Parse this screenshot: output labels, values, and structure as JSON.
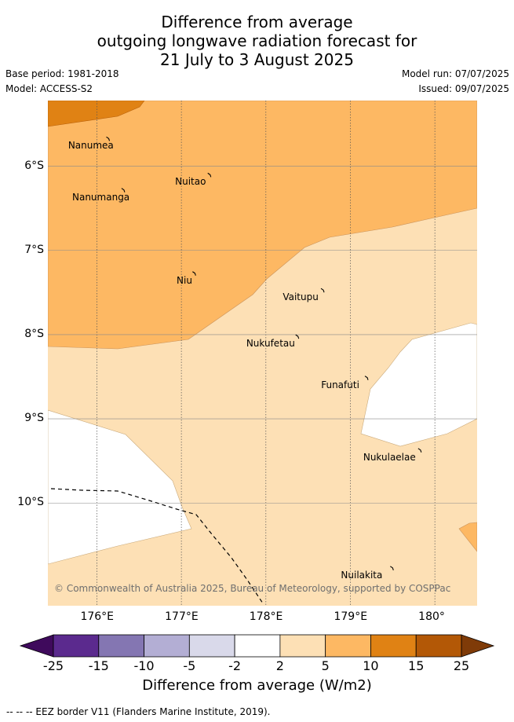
{
  "title": {
    "line1": "Difference from average",
    "line2": "outgoing longwave radiation forecast for",
    "line3": "21 July to 3 August 2025"
  },
  "meta": {
    "base_period": "Base period: 1981-2018",
    "model": "Model: ACCESS-S2",
    "model_run": "Model run: 07/07/2025",
    "issued": "Issued: 09/07/2025"
  },
  "map": {
    "lon_range": [
      175.42,
      180.5
    ],
    "lat_range": [
      -11.22,
      -5.22
    ],
    "lon_ticks": [
      {
        "value": 176,
        "label": "176°E"
      },
      {
        "value": 177,
        "label": "177°E"
      },
      {
        "value": 178,
        "label": "178°E"
      },
      {
        "value": 179,
        "label": "179°E"
      },
      {
        "value": 180,
        "label": "180°"
      }
    ],
    "lat_ticks": [
      {
        "value": -6,
        "label": "6°S"
      },
      {
        "value": -7,
        "label": "7°S"
      },
      {
        "value": -8,
        "label": "8°S"
      },
      {
        "value": -9,
        "label": "9°S"
      },
      {
        "value": -10,
        "label": "10°S"
      }
    ],
    "places": [
      {
        "name": "Nanumea",
        "lon": 176.14,
        "lat": -5.68
      },
      {
        "name": "Nuitao",
        "lon": 177.34,
        "lat": -6.11
      },
      {
        "name": "Nanumanga",
        "lon": 176.32,
        "lat": -6.29
      },
      {
        "name": "Niu",
        "lon": 177.16,
        "lat": -7.28
      },
      {
        "name": "Vaitupu",
        "lon": 178.68,
        "lat": -7.48
      },
      {
        "name": "Nukufetau",
        "lon": 178.38,
        "lat": -8.03
      },
      {
        "name": "Funafuti",
        "lon": 179.2,
        "lat": -8.52
      },
      {
        "name": "Nukulaelae",
        "lon": 179.83,
        "lat": -9.38
      },
      {
        "name": "Nuilakita",
        "lon": 179.5,
        "lat": -10.78
      }
    ],
    "copyright": "© Commonwealth of Australia 2025, Bureau of Meteorology, supported by COSPPac"
  },
  "colorbar": {
    "title": "Difference from average (W/m2)",
    "ticks": [
      "-25",
      "-15",
      "-10",
      "-5",
      "-2",
      "2",
      "5",
      "10",
      "15",
      "25"
    ],
    "colors": [
      "#3f0a5c",
      "#5b2a8e",
      "#8476b2",
      "#b3aed4",
      "#d9d9ea",
      "#ffffff",
      "#fde0b5",
      "#fdb863",
      "#e08214",
      "#b35806",
      "#7f3b08"
    ],
    "bins": [
      {
        "from": -25,
        "to": -15,
        "color": "#5b2a8e"
      },
      {
        "from": -15,
        "to": -10,
        "color": "#8476b2"
      },
      {
        "from": -10,
        "to": -5,
        "color": "#b3aed4"
      },
      {
        "from": -5,
        "to": -2,
        "color": "#d9d9ea"
      },
      {
        "from": -2,
        "to": 2,
        "color": "#ffffff"
      },
      {
        "from": 2,
        "to": 5,
        "color": "#fde0b5"
      },
      {
        "from": 5,
        "to": 10,
        "color": "#fdb863"
      },
      {
        "from": 10,
        "to": 15,
        "color": "#e08214"
      },
      {
        "from": 15,
        "to": 25,
        "color": "#b35806"
      }
    ],
    "under_color": "#3f0a5c",
    "over_color": "#7f3b08"
  },
  "footer": "-- -- -- EEZ border V11 (Flanders Marine Institute, 2019)."
}
